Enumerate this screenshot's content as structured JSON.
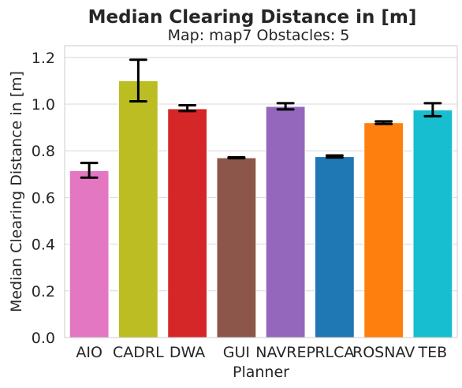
{
  "chart_data": {
    "type": "bar",
    "title": "Median Clearing Distance in [m]",
    "subtitle": "Map: map7 Obstacles: 5",
    "xlabel": "Planner",
    "ylabel": "Median Clearing Distance in [m]",
    "ylim": [
      0,
      1.25
    ],
    "yticks": [
      "0.0",
      "0.2",
      "0.4",
      "0.6",
      "0.8",
      "1.0",
      "1.2"
    ],
    "grid": "y",
    "legend": "none",
    "categories": [
      "AIO",
      "CADRL",
      "DWA",
      "GUI",
      "NAVREP",
      "RLCA",
      "ROSNAV",
      "TEB"
    ],
    "values": [
      0.715,
      1.1,
      0.98,
      0.77,
      0.99,
      0.775,
      0.92,
      0.975
    ],
    "error_low": [
      0.685,
      1.012,
      0.97,
      0.768,
      0.977,
      0.771,
      0.915,
      0.948
    ],
    "error_high": [
      0.748,
      1.19,
      0.995,
      0.772,
      1.004,
      0.78,
      0.926,
      1.004
    ],
    "colors": [
      "#e377c2",
      "#bcbd22",
      "#d62728",
      "#8c564b",
      "#9467bd",
      "#1f77b4",
      "#ff7f0e",
      "#17becf"
    ]
  }
}
